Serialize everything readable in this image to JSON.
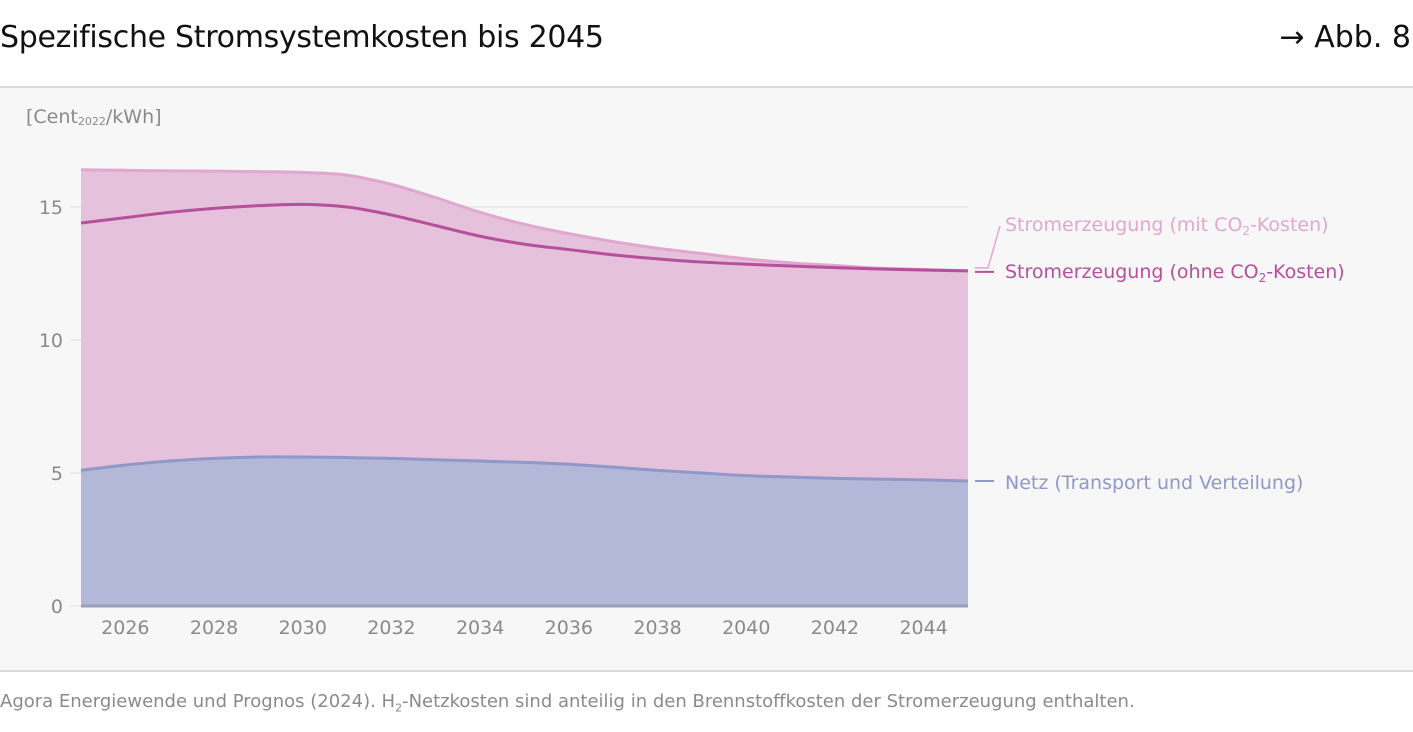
{
  "header": {
    "title": "Spezifische Stromsystemkosten bis 2045",
    "figure_ref": "→ Abb. 8"
  },
  "unit_label": {
    "prefix": "[Cent",
    "subscript": "2022",
    "suffix": "/kWh]"
  },
  "footer": {
    "source_prefix": "Agora Energiewende und Prognos (2024). H",
    "source_subscript": "2",
    "source_suffix": "-Netzkosten sind anteilig in den Brennstoffkosten der Stromerzeugung enthalten."
  },
  "chart_data": {
    "type": "area",
    "title": "Spezifische Stromsystemkosten bis 2045",
    "ylabel": "[Cent2022/kWh]",
    "xlabel": "",
    "xlim": [
      2025,
      2045
    ],
    "ylim": [
      0,
      16.5
    ],
    "yticks": [
      0,
      5,
      10,
      15
    ],
    "xticks": [
      2026,
      2028,
      2030,
      2032,
      2034,
      2036,
      2038,
      2040,
      2042,
      2044
    ],
    "grid": true,
    "legend_placement": "right (direct labels)",
    "x": [
      2025,
      2026,
      2027,
      2028,
      2029,
      2030,
      2031,
      2032,
      2033,
      2034,
      2035,
      2036,
      2037,
      2038,
      2039,
      2040,
      2041,
      2042,
      2043,
      2044,
      2045
    ],
    "series": [
      {
        "name": "Stromerzeugung (mit CO₂-Kosten)",
        "label_main": "Stromerzeugung (mit CO",
        "label_sub": "2",
        "label_end": "-Kosten)",
        "color": "#e0a8cf",
        "values": [
          16.4,
          16.38,
          16.36,
          16.35,
          16.33,
          16.3,
          16.2,
          15.85,
          15.35,
          14.8,
          14.35,
          14.0,
          13.7,
          13.45,
          13.25,
          13.05,
          12.9,
          12.8,
          12.7,
          12.65,
          12.6
        ]
      },
      {
        "name": "Stromerzeugung (ohne CO₂-Kosten)",
        "label_main": "Stromerzeugung (ohne CO",
        "label_sub": "2",
        "label_end": "-Kosten)",
        "color": "#b64f9c",
        "values": [
          14.4,
          14.6,
          14.8,
          14.95,
          15.05,
          15.1,
          15.0,
          14.7,
          14.3,
          13.9,
          13.6,
          13.4,
          13.2,
          13.05,
          12.93,
          12.85,
          12.78,
          12.72,
          12.67,
          12.63,
          12.6
        ]
      },
      {
        "name": "Netz (Transport und Verteilung)",
        "label_main": "Netz (Transport und Verteilung)",
        "label_sub": "",
        "label_end": "",
        "color": "#8f98c8",
        "values": [
          5.1,
          5.3,
          5.45,
          5.55,
          5.6,
          5.6,
          5.58,
          5.55,
          5.5,
          5.45,
          5.4,
          5.33,
          5.22,
          5.1,
          5.0,
          4.9,
          4.85,
          4.8,
          4.77,
          4.74,
          4.7
        ]
      }
    ]
  }
}
